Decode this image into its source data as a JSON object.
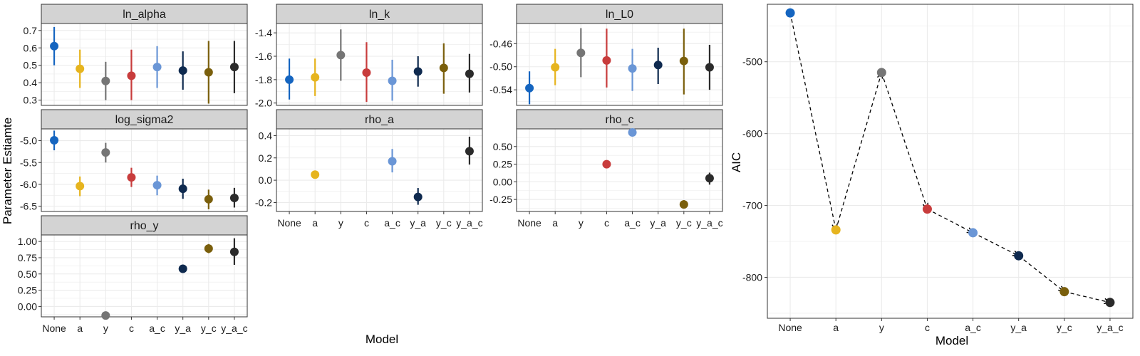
{
  "figure": {
    "facet_ylabel": "Parameter Estiamte",
    "facet_xlabel": "Model",
    "aic_xlabel": "Model",
    "aic_ylabel": "AIC"
  },
  "models": [
    "None",
    "a",
    "y",
    "c",
    "a_c",
    "y_a",
    "y_c",
    "y_a_c"
  ],
  "colors": {
    "None": "#1565c0",
    "a": "#e6b41e",
    "y": "#757575",
    "c": "#c83c3c",
    "a_c": "#6a96d6",
    "y_a": "#0f2a4f",
    "y_c": "#7a5f0c",
    "y_a_c": "#2b2b2b",
    "strip": "#d3d3d3",
    "grid": "#ebebeb",
    "panel_border": "#333333"
  },
  "chart_data": [
    {
      "type": "pointrange",
      "title": "ln_alpha",
      "ylim": [
        0.27,
        0.74
      ],
      "yticks": [
        0.3,
        0.4,
        0.5,
        0.6,
        0.7
      ],
      "ytick_labels": [
        "0.3",
        "0.4",
        "0.5",
        "0.6",
        "0.7"
      ],
      "points": [
        {
          "model": "None",
          "y": 0.61,
          "lo": 0.5,
          "hi": 0.72
        },
        {
          "model": "a",
          "y": 0.48,
          "lo": 0.37,
          "hi": 0.59
        },
        {
          "model": "y",
          "y": 0.41,
          "lo": 0.3,
          "hi": 0.52
        },
        {
          "model": "c",
          "y": 0.44,
          "lo": 0.3,
          "hi": 0.59
        },
        {
          "model": "a_c",
          "y": 0.49,
          "lo": 0.37,
          "hi": 0.61
        },
        {
          "model": "y_a",
          "y": 0.47,
          "lo": 0.36,
          "hi": 0.58
        },
        {
          "model": "y_c",
          "y": 0.46,
          "lo": 0.28,
          "hi": 0.64
        },
        {
          "model": "y_a_c",
          "y": 0.49,
          "lo": 0.34,
          "hi": 0.64
        }
      ]
    },
    {
      "type": "pointrange",
      "title": "ln_k",
      "ylim": [
        -2.02,
        -1.32
      ],
      "yticks": [
        -2.0,
        -1.8,
        -1.6,
        -1.4
      ],
      "ytick_labels": [
        "-2.0",
        "-1.8",
        "-1.6",
        "-1.4"
      ],
      "points": [
        {
          "model": "None",
          "y": -1.8,
          "lo": -1.97,
          "hi": -1.62
        },
        {
          "model": "a",
          "y": -1.78,
          "lo": -1.94,
          "hi": -1.62
        },
        {
          "model": "y",
          "y": -1.59,
          "lo": -1.81,
          "hi": -1.37
        },
        {
          "model": "c",
          "y": -1.74,
          "lo": -1.99,
          "hi": -1.48
        },
        {
          "model": "a_c",
          "y": -1.81,
          "lo": -1.98,
          "hi": -1.63
        },
        {
          "model": "y_a",
          "y": -1.73,
          "lo": -1.86,
          "hi": -1.6
        },
        {
          "model": "y_c",
          "y": -1.7,
          "lo": -1.92,
          "hi": -1.49
        },
        {
          "model": "y_a_c",
          "y": -1.75,
          "lo": -1.91,
          "hi": -1.58
        }
      ]
    },
    {
      "type": "pointrange",
      "title": "ln_L0",
      "ylim": [
        -0.567,
        -0.425
      ],
      "yticks": [
        -0.54,
        -0.5,
        -0.46
      ],
      "ytick_labels": [
        "-0.54",
        "-0.50",
        "-0.46"
      ],
      "points": [
        {
          "model": "None",
          "y": -0.537,
          "lo": -0.565,
          "hi": -0.508
        },
        {
          "model": "a",
          "y": -0.501,
          "lo": -0.532,
          "hi": -0.469
        },
        {
          "model": "y",
          "y": -0.476,
          "lo": -0.518,
          "hi": -0.433
        },
        {
          "model": "c",
          "y": -0.489,
          "lo": -0.536,
          "hi": -0.434
        },
        {
          "model": "a_c",
          "y": -0.503,
          "lo": -0.542,
          "hi": -0.469
        },
        {
          "model": "y_a",
          "y": -0.497,
          "lo": -0.53,
          "hi": -0.467
        },
        {
          "model": "y_c",
          "y": -0.49,
          "lo": -0.548,
          "hi": -0.434
        },
        {
          "model": "y_a_c",
          "y": -0.501,
          "lo": -0.54,
          "hi": -0.462
        }
      ]
    },
    {
      "type": "pointrange",
      "title": "log_sigma2",
      "ylim": [
        -6.62,
        -4.73
      ],
      "yticks": [
        -6.5,
        -6.0,
        -5.5,
        -5.0
      ],
      "ytick_labels": [
        "-6.5",
        "-6.0",
        "-5.5",
        "-5.0"
      ],
      "points": [
        {
          "model": "None",
          "y": -4.99,
          "lo": -5.22,
          "hi": -4.77
        },
        {
          "model": "a",
          "y": -6.04,
          "lo": -6.27,
          "hi": -5.82
        },
        {
          "model": "y",
          "y": -5.27,
          "lo": -5.5,
          "hi": -5.05
        },
        {
          "model": "c",
          "y": -5.84,
          "lo": -6.06,
          "hi": -5.62
        },
        {
          "model": "a_c",
          "y": -6.02,
          "lo": -6.25,
          "hi": -5.8
        },
        {
          "model": "y_a",
          "y": -6.1,
          "lo": -6.33,
          "hi": -5.87
        },
        {
          "model": "y_c",
          "y": -6.34,
          "lo": -6.57,
          "hi": -6.12
        },
        {
          "model": "y_a_c",
          "y": -6.31,
          "lo": -6.53,
          "hi": -6.08
        }
      ]
    },
    {
      "type": "pointrange",
      "title": "rho_a",
      "ylim": [
        -0.28,
        0.46
      ],
      "yticks": [
        -0.2,
        0.0,
        0.2,
        0.4
      ],
      "ytick_labels": [
        "-0.2",
        "0.0",
        "0.2",
        "0.4"
      ],
      "points": [
        {
          "model": "a",
          "y": 0.05,
          "lo": 0.03,
          "hi": 0.07
        },
        {
          "model": "a_c",
          "y": 0.17,
          "lo": 0.07,
          "hi": 0.28
        },
        {
          "model": "y_a",
          "y": -0.15,
          "lo": -0.22,
          "hi": -0.07
        },
        {
          "model": "y_a_c",
          "y": 0.26,
          "lo": 0.14,
          "hi": 0.39
        }
      ]
    },
    {
      "type": "pointrange",
      "title": "rho_c",
      "ylim": [
        -0.42,
        0.75
      ],
      "yticks": [
        -0.25,
        0.0,
        0.25,
        0.5
      ],
      "ytick_labels": [
        "-0.25",
        "0.00",
        "0.25",
        "0.50"
      ],
      "points": [
        {
          "model": "c",
          "y": 0.25,
          "lo": 0.24,
          "hi": 0.26
        },
        {
          "model": "a_c",
          "y": 0.7,
          "lo": 0.69,
          "hi": 0.71
        },
        {
          "model": "y_c",
          "y": -0.32,
          "lo": -0.38,
          "hi": -0.26
        },
        {
          "model": "y_a_c",
          "y": 0.05,
          "lo": -0.04,
          "hi": 0.13
        }
      ]
    },
    {
      "type": "pointrange",
      "title": "rho_y",
      "ylim": [
        -0.16,
        1.1
      ],
      "yticks": [
        0.0,
        0.25,
        0.5,
        0.75,
        1.0
      ],
      "ytick_labels": [
        "0.00",
        "0.25",
        "0.50",
        "0.75",
        "1.00"
      ],
      "points": [
        {
          "model": "y",
          "y": -0.14,
          "lo": -0.14,
          "hi": -0.14
        },
        {
          "model": "y_a",
          "y": 0.58,
          "lo": 0.58,
          "hi": 0.58
        },
        {
          "model": "y_c",
          "y": 0.89,
          "lo": 0.82,
          "hi": 0.96
        },
        {
          "model": "y_a_c",
          "y": 0.84,
          "lo": 0.64,
          "hi": 1.05
        }
      ]
    },
    {
      "type": "line",
      "xlabel": "Model",
      "ylabel": "AIC",
      "ylim": [
        -857,
        -420
      ],
      "yticks": [
        -800,
        -700,
        -600,
        -500
      ],
      "ytick_labels": [
        "-800",
        "-700",
        "-600",
        "-500"
      ],
      "line_style": "dashed",
      "arrows": true,
      "points": [
        {
          "model": "None",
          "y": -432
        },
        {
          "model": "a",
          "y": -734
        },
        {
          "model": "y",
          "y": -515
        },
        {
          "model": "c",
          "y": -705
        },
        {
          "model": "a_c",
          "y": -738
        },
        {
          "model": "y_a",
          "y": -770
        },
        {
          "model": "y_c",
          "y": -820
        },
        {
          "model": "y_a_c",
          "y": -835
        }
      ]
    }
  ]
}
